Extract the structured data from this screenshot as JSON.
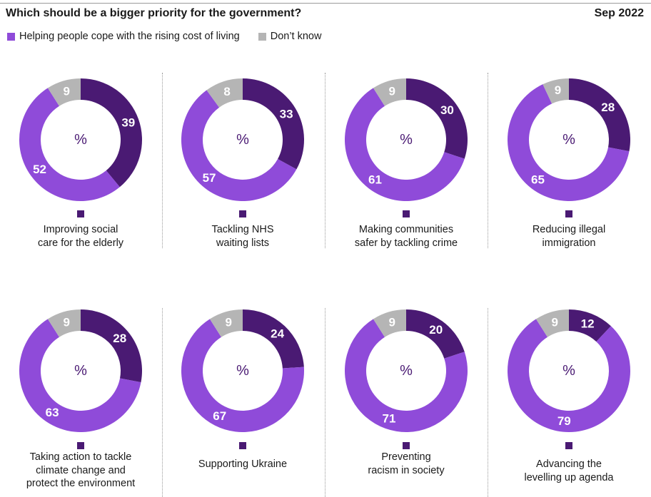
{
  "header": {
    "title": "Which should be a bigger priority for the government?",
    "date": "Sep 2022"
  },
  "legend": [
    {
      "label": "Helping people cope with the rising cost of living",
      "color": "#8f4bd9"
    },
    {
      "label": "Don’t know",
      "color": "#b5b5b5"
    }
  ],
  "colors": {
    "option": "#4a1a73",
    "cost_of_living": "#8f4bd9",
    "dont_know": "#b5b5b5"
  },
  "center_symbol": "%",
  "chart_data": {
    "type": "pie",
    "variant": "donut-small-multiples",
    "title": "Which should be a bigger priority for the government?",
    "subtitle": "Sep 2022",
    "unit": "%",
    "series_names": [
      "Helping people cope with the rising cost of living",
      "Don’t know"
    ],
    "panels": [
      {
        "label": "Improving social\ncare for the elderly",
        "option": 39,
        "cost_of_living": 52,
        "dont_know": 9
      },
      {
        "label": "Tackling NHS\nwaiting lists",
        "option": 33,
        "cost_of_living": 57,
        "dont_know": 8
      },
      {
        "label": "Making communities\nsafer by tackling crime",
        "option": 30,
        "cost_of_living": 61,
        "dont_know": 9
      },
      {
        "label": "Reducing illegal\nimmigration",
        "option": 28,
        "cost_of_living": 65,
        "dont_know": 9
      },
      {
        "label": "Taking action to tackle\nclimate change and\nprotect the environment",
        "option": 28,
        "cost_of_living": 63,
        "dont_know": 9
      },
      {
        "label": "Supporting Ukraine",
        "option": 24,
        "cost_of_living": 67,
        "dont_know": 9
      },
      {
        "label": "Preventing\nracism in society",
        "option": 20,
        "cost_of_living": 71,
        "dont_know": 9
      },
      {
        "label": "Advancing the\nlevelling up agenda",
        "option": 12,
        "cost_of_living": 79,
        "dont_know": 9
      }
    ]
  }
}
